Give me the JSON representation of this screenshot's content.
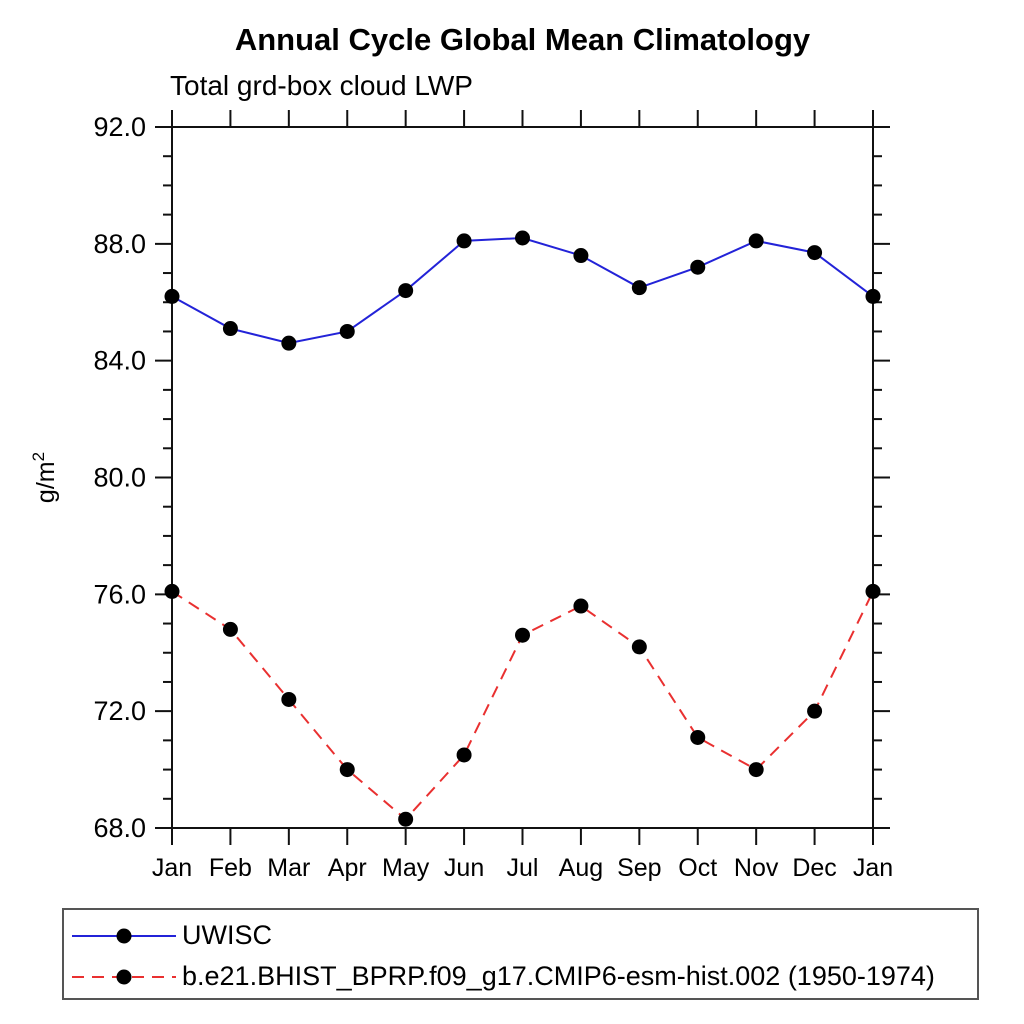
{
  "chart_data": {
    "type": "line",
    "title": "Annual Cycle Global Mean Climatology",
    "subtitle": "Total grd-box cloud LWP",
    "ylabel": "g/m",
    "ylabel_superscript": "2",
    "xlabel": "",
    "categories": [
      "Jan",
      "Feb",
      "Mar",
      "Apr",
      "May",
      "Jun",
      "Jul",
      "Aug",
      "Sep",
      "Oct",
      "Nov",
      "Dec",
      "Jan"
    ],
    "series": [
      {
        "name": "UWISC",
        "line_style": "solid",
        "color": "#2323d8",
        "marker": "filled-circle",
        "marker_color": "#000000",
        "values": [
          86.2,
          85.1,
          84.6,
          85.0,
          86.4,
          88.1,
          88.2,
          87.6,
          86.5,
          87.2,
          88.1,
          87.7,
          86.2
        ]
      },
      {
        "name": "b.e21.BHIST_BPRP.f09_g17.CMIP6-esm-hist.002 (1950-1974)",
        "line_style": "dashed",
        "color": "#e93030",
        "marker": "filled-circle",
        "marker_color": "#000000",
        "values": [
          76.1,
          74.8,
          72.4,
          70.0,
          68.3,
          70.5,
          74.6,
          75.6,
          74.2,
          71.1,
          70.0,
          72.0,
          76.1
        ]
      }
    ],
    "ylim": [
      68,
      92
    ],
    "ytick_minor_step": 1,
    "ytick_major_step": 4,
    "ytick_labels": [
      "68.0",
      "72.0",
      "76.0",
      "80.0",
      "84.0",
      "88.0",
      "92.0"
    ],
    "grid": false,
    "axis_color": "#111111",
    "legend_position": "bottom-left-box"
  }
}
